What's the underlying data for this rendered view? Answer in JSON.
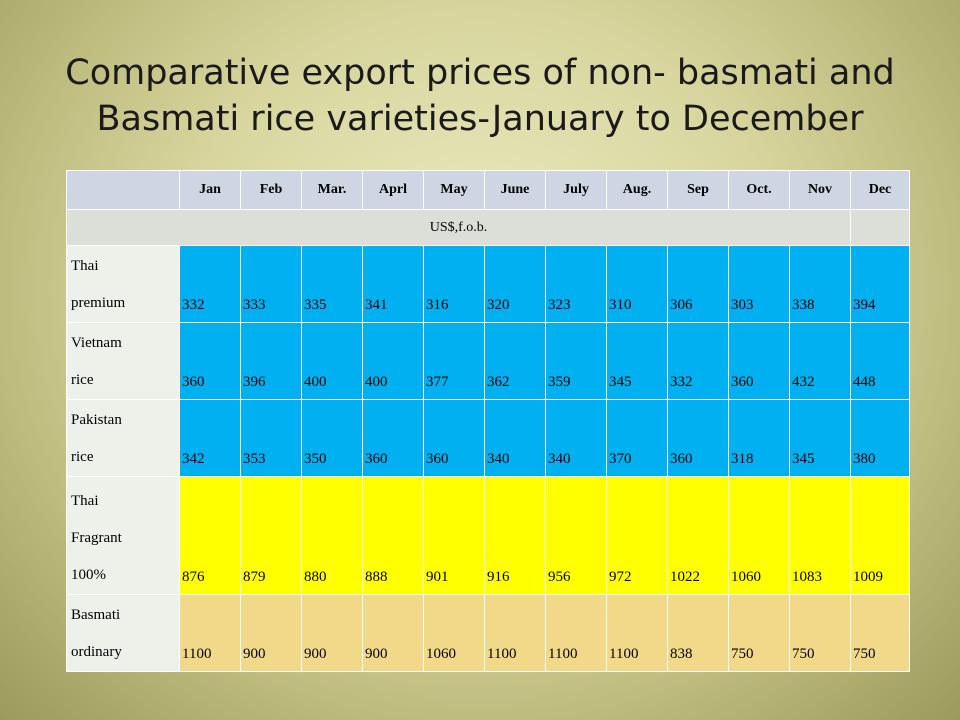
{
  "title": "Comparative export prices of non- basmati and Basmati rice varieties-January to December",
  "table": {
    "months": [
      "Jan",
      "Feb",
      "Mar.",
      "Aprl",
      "May",
      "June",
      "July",
      "Aug.",
      "Sep",
      "Oct.",
      "Nov",
      "Dec"
    ],
    "unit": "US$,f.o.b.",
    "rows": [
      {
        "label_lines": [
          "Thai",
          "premium"
        ],
        "values": [
          "332",
          "333",
          "335",
          "341",
          "316",
          "320",
          "323",
          "310",
          "306",
          "303",
          "338",
          "394"
        ],
        "color": "#00b0f0"
      },
      {
        "label_lines": [
          "Vietnam",
          "rice"
        ],
        "values": [
          "360",
          "396",
          "400",
          "400",
          "377",
          "362",
          "359",
          "345",
          "332",
          "360",
          "432",
          "448"
        ],
        "color": "#00b0f0"
      },
      {
        "label_lines": [
          "Pakistan",
          "rice"
        ],
        "values": [
          "342",
          "353",
          "350",
          "360",
          "360",
          "340",
          "340",
          "370",
          "360",
          "318",
          "345",
          "380"
        ],
        "color": "#00b0f0"
      },
      {
        "label_lines": [
          "Thai",
          "Fragrant",
          "100%"
        ],
        "values": [
          "876",
          "879",
          "880",
          "888",
          "901",
          "916",
          "956",
          "972",
          "1022",
          "1060",
          "1083",
          "1009"
        ],
        "color": "#ffff00"
      },
      {
        "label_lines": [
          "Basmati",
          "ordinary"
        ],
        "values": [
          "1100",
          "900",
          "900",
          "900",
          "1060",
          "1100",
          "1100",
          "1100",
          "838",
          "750",
          "750",
          "750"
        ],
        "color": "#f2d98a"
      }
    ]
  }
}
